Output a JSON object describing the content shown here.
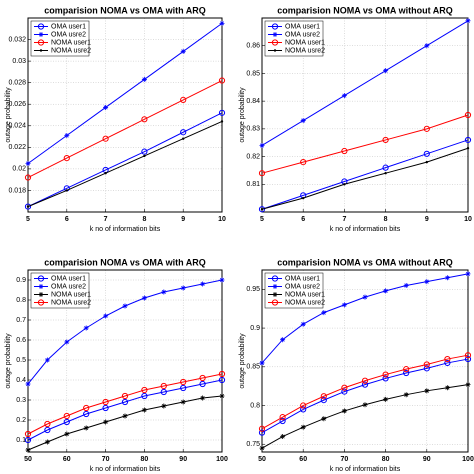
{
  "chart_data": [
    {
      "type": "line",
      "title": "comparision NOMA vs OMA with ARQ",
      "xlabel": "k no of information bits",
      "ylabel": "outage probability",
      "x": [
        5,
        6,
        7,
        8,
        9,
        10
      ],
      "xlim": [
        5,
        10
      ],
      "xticks": [
        5,
        6,
        7,
        8,
        9,
        10
      ],
      "ylim": [
        0.016,
        0.034
      ],
      "yticks": [
        0.018,
        0.02,
        0.022,
        0.024,
        0.026,
        0.028,
        0.03,
        0.032
      ],
      "grid": true,
      "legend": "upper left",
      "series": [
        {
          "name": "OMA user1",
          "color": "#0000ff",
          "marker": "o",
          "values": [
            0.0165,
            0.0182,
            0.0199,
            0.0216,
            0.0234,
            0.0252
          ]
        },
        {
          "name": "OMA usre2",
          "color": "#0000ff",
          "marker": "*",
          "values": [
            0.0205,
            0.0231,
            0.0257,
            0.0283,
            0.0309,
            0.0335
          ]
        },
        {
          "name": "NOMA user1",
          "color": "#ff0000",
          "marker": "o",
          "values": [
            0.0192,
            0.021,
            0.0228,
            0.0246,
            0.0264,
            0.0282
          ]
        },
        {
          "name": "NOMA usre2",
          "color": "#000000",
          "marker": ".",
          "values": [
            0.0165,
            0.018,
            0.0196,
            0.0212,
            0.0228,
            0.0244
          ]
        }
      ]
    },
    {
      "type": "line",
      "title": "comparision NOMA vs OMA without ARQ",
      "xlabel": "k no of information bits",
      "ylabel": "outage probability",
      "x": [
        5,
        6,
        7,
        8,
        9,
        10
      ],
      "xlim": [
        5,
        10
      ],
      "xticks": [
        5,
        6,
        7,
        8,
        9,
        10
      ],
      "ylim": [
        0.8,
        0.87
      ],
      "yticks": [
        0.81,
        0.82,
        0.83,
        0.84,
        0.85,
        0.86
      ],
      "grid": true,
      "legend": "upper left",
      "series": [
        {
          "name": "OMA user1",
          "color": "#0000ff",
          "marker": "o",
          "values": [
            0.801,
            0.806,
            0.811,
            0.816,
            0.821,
            0.826
          ]
        },
        {
          "name": "OMA usre2",
          "color": "#0000ff",
          "marker": "*",
          "values": [
            0.824,
            0.833,
            0.842,
            0.851,
            0.86,
            0.869
          ]
        },
        {
          "name": "NOMA user1",
          "color": "#ff0000",
          "marker": "o",
          "values": [
            0.814,
            0.818,
            0.822,
            0.826,
            0.83,
            0.835
          ]
        },
        {
          "name": "NOMA usre2",
          "color": "#000000",
          "marker": ".",
          "values": [
            0.801,
            0.805,
            0.81,
            0.814,
            0.818,
            0.823
          ]
        }
      ]
    },
    {
      "type": "line",
      "title": "comparision NOMA vs OMA with ARQ",
      "xlabel": "k no of information bits",
      "ylabel": "outage probability",
      "x": [
        50,
        55,
        60,
        65,
        70,
        75,
        80,
        85,
        90,
        95,
        100
      ],
      "xlim": [
        50,
        100
      ],
      "xticks": [
        50,
        60,
        70,
        80,
        90,
        100
      ],
      "ylim": [
        0.04,
        0.95
      ],
      "yticks": [
        0.1,
        0.2,
        0.3,
        0.4,
        0.5,
        0.6,
        0.7,
        0.8,
        0.9
      ],
      "grid": true,
      "legend": "upper left",
      "series": [
        {
          "name": "OMA user1",
          "color": "#0000ff",
          "marker": "o",
          "values": [
            0.1,
            0.15,
            0.19,
            0.23,
            0.26,
            0.29,
            0.32,
            0.34,
            0.36,
            0.38,
            0.4
          ]
        },
        {
          "name": "OMA usre2",
          "color": "#0000ff",
          "marker": "*",
          "values": [
            0.38,
            0.5,
            0.59,
            0.66,
            0.72,
            0.77,
            0.81,
            0.84,
            0.86,
            0.88,
            0.9
          ]
        },
        {
          "name": "NOMA user1",
          "color": "#000000",
          "marker": "*",
          "values": [
            0.05,
            0.09,
            0.13,
            0.16,
            0.19,
            0.22,
            0.25,
            0.27,
            0.29,
            0.31,
            0.32
          ]
        },
        {
          "name": "NOMA usre2",
          "color": "#ff0000",
          "marker": "o",
          "values": [
            0.13,
            0.18,
            0.22,
            0.26,
            0.29,
            0.32,
            0.35,
            0.37,
            0.39,
            0.41,
            0.43
          ]
        }
      ]
    },
    {
      "type": "line",
      "title": "comparision NOMA vs OMA without ARQ",
      "xlabel": "k no of information bits",
      "ylabel": "outage probability",
      "x": [
        50,
        55,
        60,
        65,
        70,
        75,
        80,
        85,
        90,
        95,
        100
      ],
      "xlim": [
        50,
        100
      ],
      "xticks": [
        50,
        60,
        70,
        80,
        90,
        100
      ],
      "ylim": [
        0.74,
        0.975
      ],
      "yticks": [
        0.75,
        0.8,
        0.85,
        0.9,
        0.95
      ],
      "grid": true,
      "legend": "upper left",
      "series": [
        {
          "name": "OMA user1",
          "color": "#0000ff",
          "marker": "o",
          "values": [
            0.765,
            0.78,
            0.795,
            0.807,
            0.818,
            0.827,
            0.835,
            0.842,
            0.848,
            0.855,
            0.86
          ]
        },
        {
          "name": "OMA usre2",
          "color": "#0000ff",
          "marker": "*",
          "values": [
            0.855,
            0.885,
            0.905,
            0.92,
            0.93,
            0.94,
            0.948,
            0.955,
            0.96,
            0.965,
            0.97
          ]
        },
        {
          "name": "NOMA user1",
          "color": "#000000",
          "marker": "*",
          "values": [
            0.745,
            0.76,
            0.772,
            0.783,
            0.793,
            0.801,
            0.808,
            0.814,
            0.819,
            0.823,
            0.827
          ]
        },
        {
          "name": "NOMA usre2",
          "color": "#ff0000",
          "marker": "o",
          "values": [
            0.77,
            0.785,
            0.8,
            0.812,
            0.823,
            0.832,
            0.84,
            0.847,
            0.853,
            0.86,
            0.865
          ]
        }
      ]
    }
  ]
}
